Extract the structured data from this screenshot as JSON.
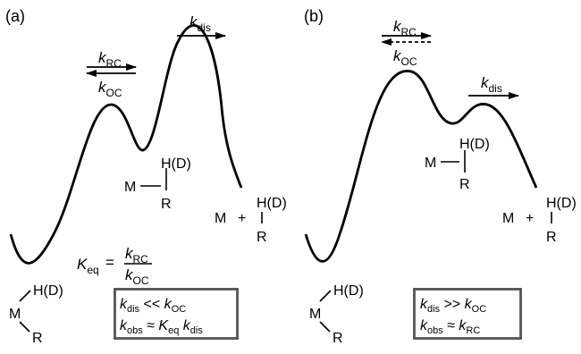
{
  "panel_a": {
    "label": "(a)",
    "k_sym": "k",
    "rc_sub": "RC",
    "oc_sub": "OC",
    "dis_sub": "dis",
    "keq_sym": "K",
    "eq_sub": "eq",
    "equals": "=",
    "reactant": {
      "metal": "M",
      "h": "H(D)",
      "r": "R"
    },
    "complex": {
      "metal": "M",
      "h": "H(D)",
      "r": "R"
    },
    "products": {
      "metal": "M",
      "plus": "+",
      "h": "H(D)",
      "r": "R"
    },
    "box": {
      "line1": {
        "k": "k",
        "sub1": "dis",
        "op": " << ",
        "k2": "k",
        "sub2": "OC"
      },
      "line2": {
        "k": "k",
        "sub1": "obs",
        "op": " ≈ ",
        "K": "K",
        "subK": "eq",
        "k3": "k",
        "sub3": "dis"
      }
    }
  },
  "panel_b": {
    "label": "(b)",
    "k_sym": "k",
    "rc_sub": "RC",
    "oc_sub": "OC",
    "dis_sub": "dis",
    "reactant": {
      "metal": "M",
      "h": "H(D)",
      "r": "R"
    },
    "complex": {
      "metal": "M",
      "h": "H(D)",
      "r": "R"
    },
    "products": {
      "metal": "M",
      "plus": "+",
      "h": "H(D)",
      "r": "R"
    },
    "box": {
      "line1": {
        "k": "k",
        "sub1": "dis",
        "op": " >> ",
        "k2": "k",
        "sub2": "OC"
      },
      "line2": {
        "k": "k",
        "sub1": "obs",
        "op": " ≈ ",
        "k3": "k",
        "sub3": "RC"
      }
    }
  }
}
